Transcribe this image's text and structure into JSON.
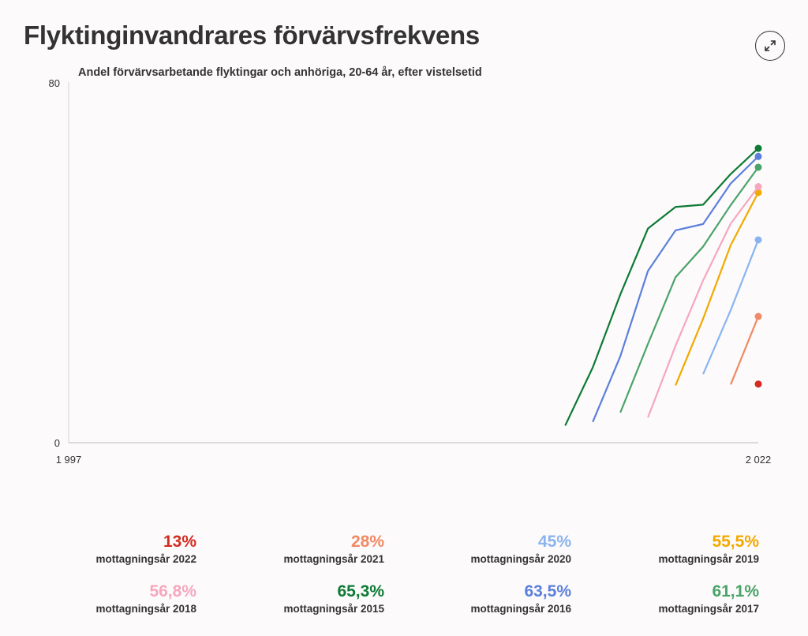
{
  "title": "Flyktinginvandrares förvärvsfrekvens",
  "icons": {
    "expand": "expand-arrows-icon"
  },
  "chart_data": {
    "type": "line",
    "subtitle": "Andel förvärvsarbetande flyktingar och anhöriga, 20-64 år, efter vistelsetid",
    "x_range": [
      1997,
      2022
    ],
    "x_tick_labels": [
      "1 997",
      "2 022"
    ],
    "ylim": [
      0,
      80
    ],
    "y_tick_labels": [
      "0",
      "80"
    ],
    "grid": false,
    "series": [
      {
        "name": "mottagningsår 2015",
        "color": "#0d7a35",
        "x": [
          2015,
          2016,
          2017,
          2018,
          2019,
          2020,
          2021,
          2022
        ],
        "y": [
          3.8,
          16.7,
          32.9,
          47.5,
          52.3,
          52.8,
          59.6,
          65.3
        ]
      },
      {
        "name": "mottagningsår 2016",
        "color": "#5b7fdc",
        "x": [
          2016,
          2017,
          2018,
          2019,
          2020,
          2021,
          2022
        ],
        "y": [
          4.6,
          19.2,
          38.1,
          47.1,
          48.5,
          57.5,
          63.5
        ]
      },
      {
        "name": "mottagningsår 2017",
        "color": "#4aa36a",
        "x": [
          2017,
          2018,
          2019,
          2020,
          2021,
          2022
        ],
        "y": [
          6.7,
          21.9,
          36.7,
          43.5,
          52.7,
          61.1
        ]
      },
      {
        "name": "mottagningsår 2018",
        "color": "#f6a7bf",
        "x": [
          2018,
          2019,
          2020,
          2021,
          2022
        ],
        "y": [
          5.6,
          21.5,
          36.0,
          48.6,
          56.8
        ]
      },
      {
        "name": "mottagningsår 2019",
        "color": "#f2a900",
        "x": [
          2019,
          2020,
          2021,
          2022
        ],
        "y": [
          12.7,
          27.5,
          43.8,
          55.5
        ]
      },
      {
        "name": "mottagningsår 2020",
        "color": "#8ab4f0",
        "x": [
          2020,
          2021,
          2022
        ],
        "y": [
          15.2,
          29.4,
          45.0
        ]
      },
      {
        "name": "mottagningsår 2021",
        "color": "#f08a66",
        "x": [
          2021,
          2022
        ],
        "y": [
          12.9,
          28.0
        ]
      },
      {
        "name": "mottagningsår 2022",
        "color": "#d42b22",
        "x": [
          2022
        ],
        "y": [
          13.0
        ]
      }
    ]
  },
  "stats": [
    {
      "value": "13%",
      "label": "mottagningsår 2022",
      "color": "#d42b22"
    },
    {
      "value": "28%",
      "label": "mottagningsår 2021",
      "color": "#f08a66"
    },
    {
      "value": "45%",
      "label": "mottagningsår 2020",
      "color": "#8ab4f0"
    },
    {
      "value": "55,5%",
      "label": "mottagningsår 2019",
      "color": "#f2a900"
    },
    {
      "value": "56,8%",
      "label": "mottagningsår 2018",
      "color": "#f6a7bf"
    },
    {
      "value": "65,3%",
      "label": "mottagningsår 2015",
      "color": "#0d7a35"
    },
    {
      "value": "63,5%",
      "label": "mottagningsår 2016",
      "color": "#5b7fdc"
    },
    {
      "value": "61,1%",
      "label": "mottagningsår 2017",
      "color": "#4aa36a"
    }
  ]
}
